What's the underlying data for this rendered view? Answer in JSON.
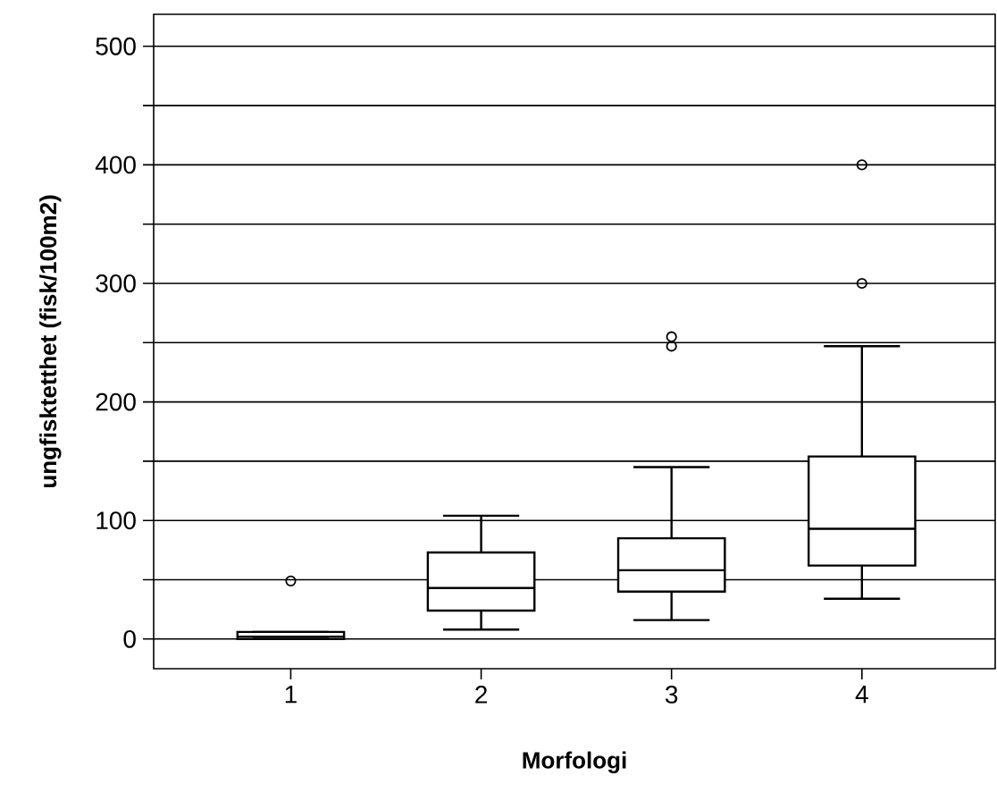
{
  "chart_data": {
    "type": "box",
    "xlabel": "Morfologi",
    "ylabel": "ungfisktetthet (fisk/100m2)",
    "categories": [
      "1",
      "2",
      "3",
      "4"
    ],
    "boxes": [
      {
        "low": 0,
        "q1": 0,
        "median": 2,
        "q3": 6,
        "high": 6,
        "outliers": [
          49
        ]
      },
      {
        "low": 8,
        "q1": 24,
        "median": 43,
        "q3": 73,
        "high": 104
      },
      {
        "low": 16,
        "q1": 40,
        "median": 58,
        "q3": 85,
        "high": 145,
        "outliers": [
          247,
          255
        ]
      },
      {
        "low": 34,
        "q1": 62,
        "median": 93,
        "q3": 154,
        "high": 247,
        "outliers": [
          300,
          400
        ]
      }
    ],
    "ylim": [
      -25,
      527
    ],
    "yticks": [
      0,
      {
        "value": 50,
        "label": null
      },
      100,
      {
        "value": 150,
        "label": null
      },
      200,
      {
        "value": 250,
        "label": null
      },
      300,
      {
        "value": 350,
        "label": null
      },
      400,
      {
        "value": 450,
        "label": null
      },
      500
    ],
    "grid": "y",
    "marker": "circle"
  }
}
